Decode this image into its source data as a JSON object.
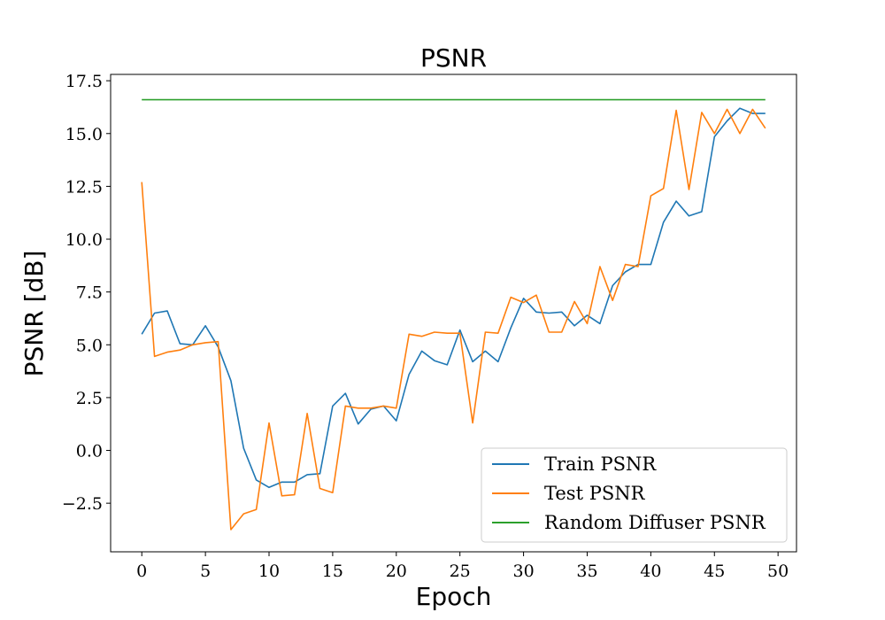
{
  "chart_data": {
    "type": "line",
    "title": "PSNR",
    "xlabel": "Epoch",
    "ylabel": "PSNR [dB]",
    "xlim": [
      -2.45,
      51.45
    ],
    "ylim": [
      -4.8,
      17.8
    ],
    "xticks": [
      0,
      5,
      10,
      15,
      20,
      25,
      30,
      35,
      40,
      45,
      50
    ],
    "yticks": [
      -2.5,
      0.0,
      2.5,
      5.0,
      7.5,
      10.0,
      12.5,
      15.0,
      17.5
    ],
    "ytick_labels": [
      "−2.5",
      "0.0",
      "2.5",
      "5.0",
      "7.5",
      "10.0",
      "12.5",
      "15.0",
      "17.5"
    ],
    "grid": false,
    "legend_position": "lower-right",
    "x": [
      0,
      1,
      2,
      3,
      4,
      5,
      6,
      7,
      8,
      9,
      10,
      11,
      12,
      13,
      14,
      15,
      16,
      17,
      18,
      19,
      20,
      21,
      22,
      23,
      24,
      25,
      26,
      27,
      28,
      29,
      30,
      31,
      32,
      33,
      34,
      35,
      36,
      37,
      38,
      39,
      40,
      41,
      42,
      43,
      44,
      45,
      46,
      47,
      48,
      49
    ],
    "series": [
      {
        "name": "Train PSNR",
        "color": "#1f77b4",
        "values": [
          5.5,
          6.5,
          6.6,
          5.05,
          5.0,
          5.9,
          4.9,
          3.3,
          0.1,
          -1.4,
          -1.75,
          -1.5,
          -1.5,
          -1.15,
          -1.1,
          2.1,
          2.7,
          1.25,
          1.95,
          2.1,
          1.4,
          3.6,
          4.7,
          4.25,
          4.05,
          5.7,
          4.2,
          4.7,
          4.2,
          5.8,
          7.2,
          6.55,
          6.5,
          6.55,
          5.9,
          6.4,
          6.0,
          7.8,
          8.45,
          8.8,
          8.8,
          10.8,
          11.8,
          11.1,
          11.3,
          14.85,
          15.6,
          16.2,
          15.95,
          15.95
        ]
      },
      {
        "name": "Test PSNR",
        "color": "#ff7f0e",
        "values": [
          12.7,
          4.45,
          4.65,
          4.75,
          5.0,
          5.1,
          5.15,
          -3.75,
          -3.0,
          -2.8,
          1.3,
          -2.15,
          -2.1,
          1.75,
          -1.8,
          -2.0,
          2.1,
          2.0,
          2.0,
          2.1,
          2.0,
          5.5,
          5.4,
          5.6,
          5.55,
          5.55,
          1.3,
          5.6,
          5.55,
          7.25,
          7.0,
          7.35,
          5.6,
          5.6,
          7.05,
          6.0,
          8.7,
          7.1,
          8.8,
          8.7,
          12.05,
          12.4,
          16.1,
          12.35,
          16.0,
          15.0,
          16.15,
          15.0,
          16.15,
          15.25
        ]
      },
      {
        "name": "Random Diffuser PSNR",
        "color": "#2ca02c",
        "values": [
          16.6,
          16.6,
          16.6,
          16.6,
          16.6,
          16.6,
          16.6,
          16.6,
          16.6,
          16.6,
          16.6,
          16.6,
          16.6,
          16.6,
          16.6,
          16.6,
          16.6,
          16.6,
          16.6,
          16.6,
          16.6,
          16.6,
          16.6,
          16.6,
          16.6,
          16.6,
          16.6,
          16.6,
          16.6,
          16.6,
          16.6,
          16.6,
          16.6,
          16.6,
          16.6,
          16.6,
          16.6,
          16.6,
          16.6,
          16.6,
          16.6,
          16.6,
          16.6,
          16.6,
          16.6,
          16.6,
          16.6,
          16.6,
          16.6,
          16.6
        ]
      }
    ]
  }
}
